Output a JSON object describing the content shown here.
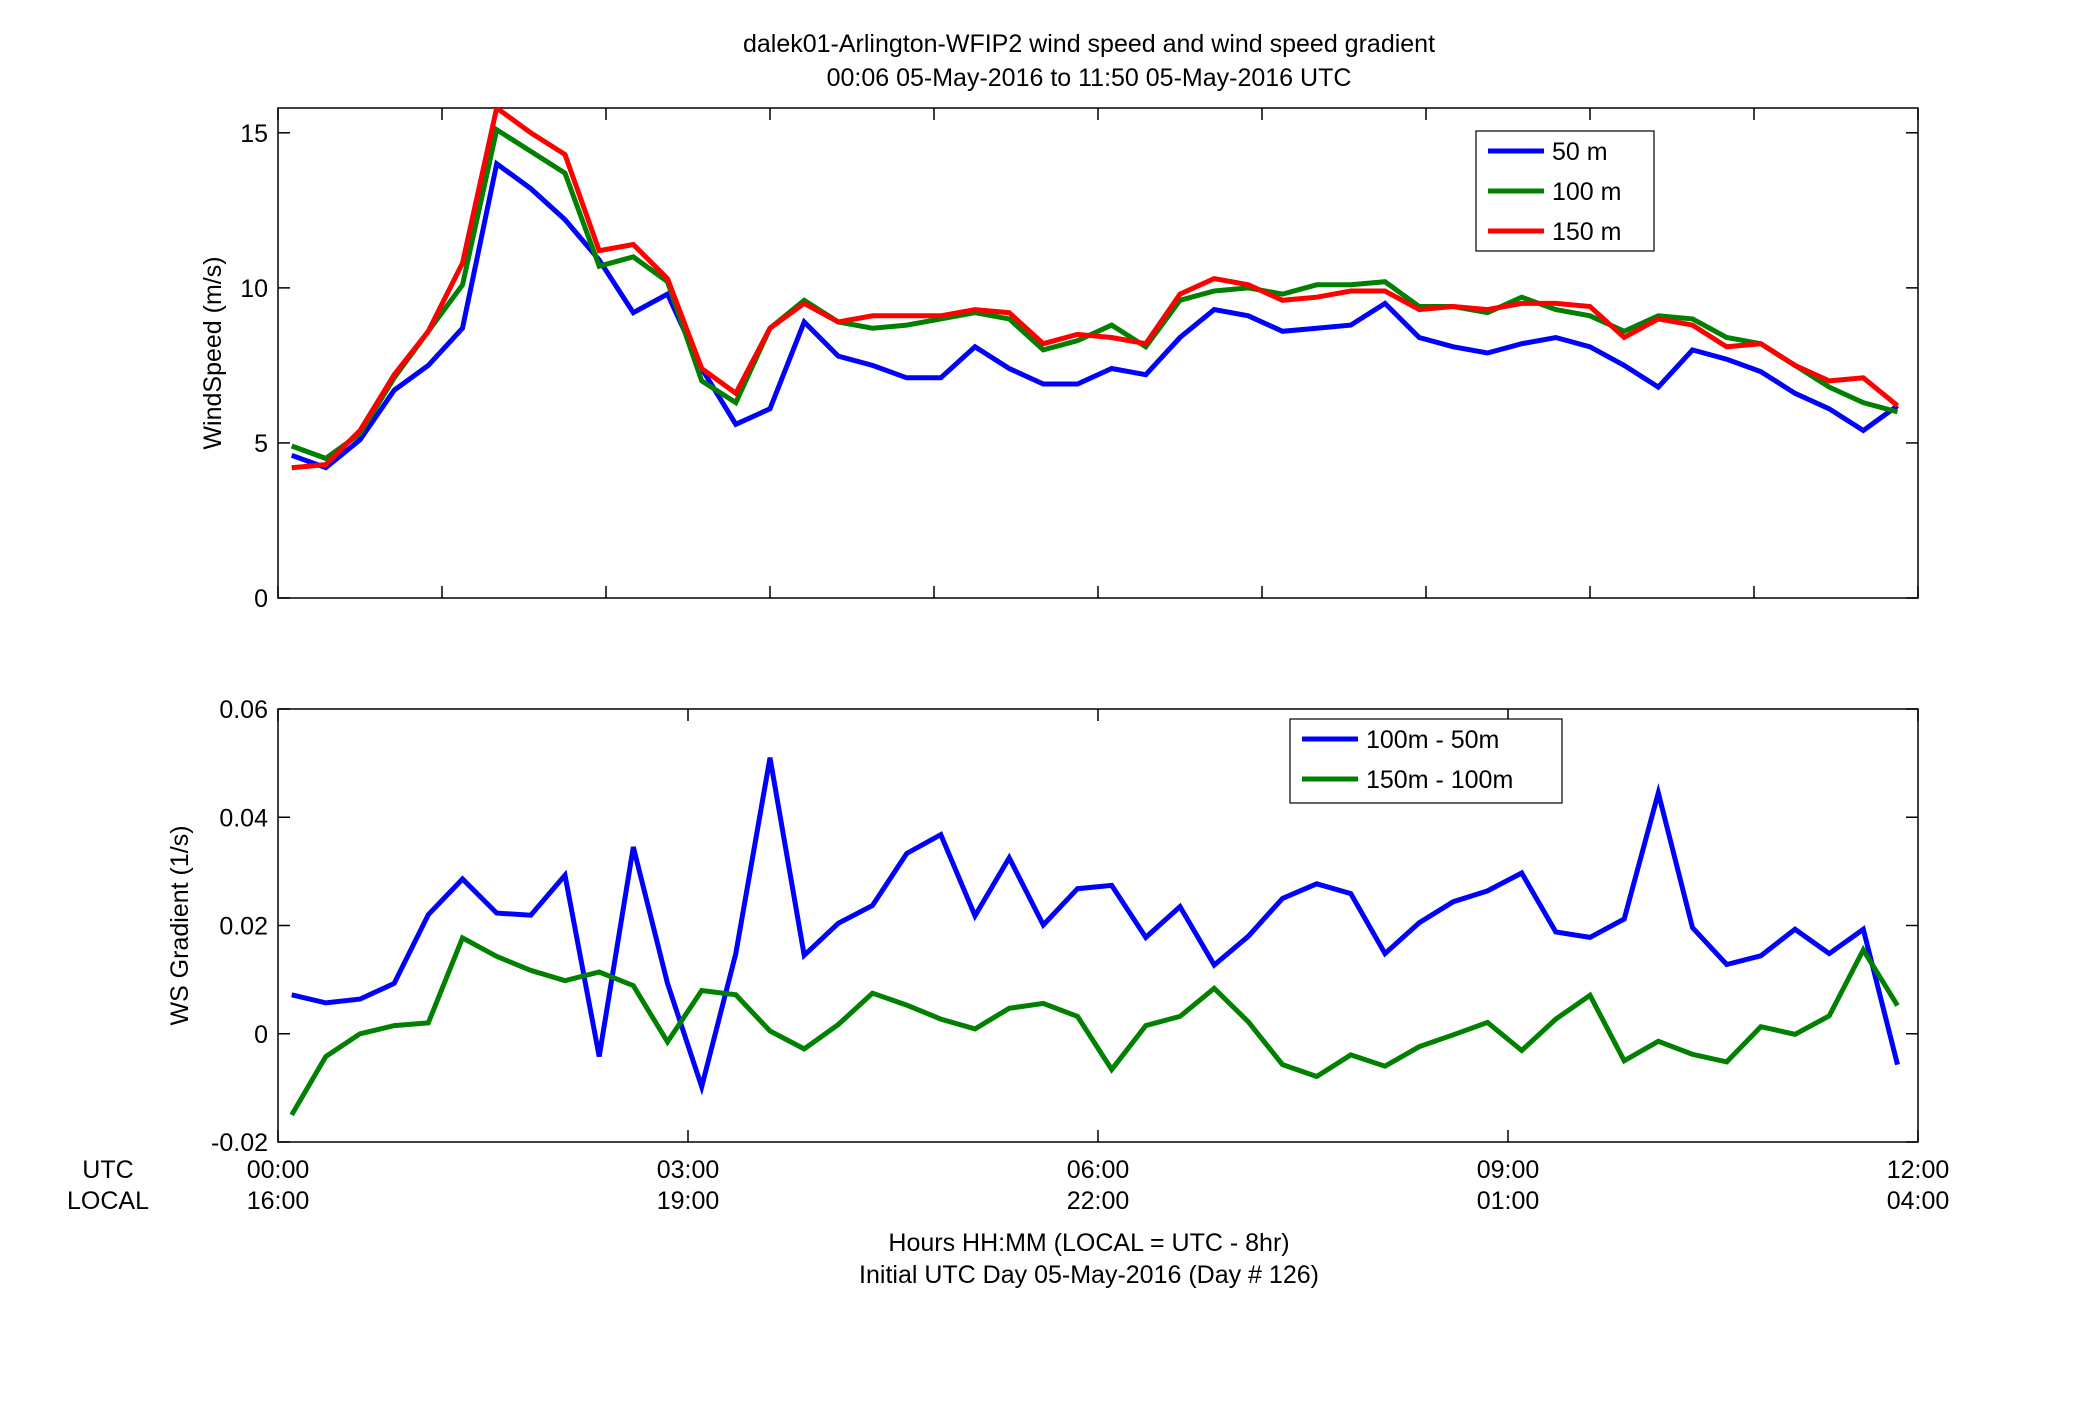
{
  "figure": {
    "title_line1": "dalek01-Arlington-WFIP2  wind speed and wind speed gradient",
    "title_line2": "00:06 05-May-2016 to 11:50 05-May-2016  UTC",
    "xaxis_caption1": "Hours HH:MM  (LOCAL = UTC - 8hr)",
    "xaxis_caption2": "Initial UTC Day 05-May-2016 (Day # 126)",
    "row_label_utc": "UTC",
    "row_label_local": "LOCAL",
    "utc_ticks": [
      "00:00",
      "03:00",
      "06:00",
      "09:00",
      "12:00"
    ],
    "local_ticks": [
      "16:00",
      "19:00",
      "22:00",
      "01:00",
      "04:00"
    ]
  },
  "chart_data": [
    {
      "type": "line",
      "ylabel": "WindSpeed (m/s)",
      "xlim": [
        0,
        12
      ],
      "ylim": [
        0,
        15.8
      ],
      "yticks": [
        0,
        5,
        10,
        15
      ],
      "ytick_labels": [
        "0",
        "5",
        "10",
        "15"
      ],
      "xticks": [
        0,
        1.2,
        2.4,
        3.6,
        4.8,
        6,
        7.2,
        8.4,
        9.6,
        10.8,
        12
      ],
      "legend_position": "top-right",
      "x": [
        0.1,
        0.35,
        0.6,
        0.85,
        1.1,
        1.35,
        1.6,
        1.85,
        2.1,
        2.35,
        2.6,
        2.85,
        3.1,
        3.35,
        3.6,
        3.85,
        4.1,
        4.35,
        4.6,
        4.85,
        5.1,
        5.35,
        5.6,
        5.85,
        6.1,
        6.35,
        6.6,
        6.85,
        7.1,
        7.35,
        7.6,
        7.85,
        8.1,
        8.35,
        8.6,
        8.85,
        9.1,
        9.35,
        9.6,
        9.85,
        10.1,
        10.35,
        10.6,
        10.85,
        11.1,
        11.35,
        11.6,
        11.85
      ],
      "series": [
        {
          "name": "50 m",
          "color": "#0000ff",
          "values": [
            4.6,
            4.2,
            5.1,
            6.7,
            7.5,
            8.7,
            14.0,
            13.2,
            12.2,
            10.9,
            9.2,
            9.8,
            7.4,
            5.6,
            6.1,
            8.9,
            7.8,
            7.5,
            7.1,
            7.1,
            8.1,
            7.4,
            6.9,
            6.9,
            7.4,
            7.2,
            8.4,
            9.3,
            9.1,
            8.6,
            8.7,
            8.8,
            9.5,
            8.4,
            8.1,
            7.9,
            8.2,
            8.4,
            8.1,
            7.5,
            6.8,
            8.0,
            7.7,
            7.3,
            6.6,
            6.1,
            5.4,
            6.2
          ]
        },
        {
          "name": "100 m",
          "color": "#008000",
          "values": [
            4.9,
            4.5,
            5.3,
            7.1,
            8.6,
            10.1,
            15.1,
            14.4,
            13.7,
            10.7,
            11.0,
            10.2,
            7.0,
            6.3,
            8.7,
            9.6,
            8.9,
            8.7,
            8.8,
            9.0,
            9.2,
            9.0,
            8.0,
            8.3,
            8.8,
            8.1,
            9.6,
            9.9,
            10.0,
            9.8,
            10.1,
            10.1,
            10.2,
            9.4,
            9.4,
            9.2,
            9.7,
            9.3,
            9.1,
            8.6,
            9.1,
            9.0,
            8.4,
            8.2,
            7.5,
            6.8,
            6.3,
            6.0
          ]
        },
        {
          "name": "150 m",
          "color": "#ff0000",
          "values": [
            4.2,
            4.3,
            5.4,
            7.2,
            8.6,
            10.8,
            15.8,
            15.0,
            14.3,
            11.2,
            11.4,
            10.3,
            7.4,
            6.6,
            8.7,
            9.5,
            8.9,
            9.1,
            9.1,
            9.1,
            9.3,
            9.2,
            8.2,
            8.5,
            8.4,
            8.2,
            9.8,
            10.3,
            10.1,
            9.6,
            9.7,
            9.9,
            9.9,
            9.3,
            9.4,
            9.3,
            9.5,
            9.5,
            9.4,
            8.4,
            9.0,
            8.8,
            8.1,
            8.2,
            7.5,
            7.0,
            7.1,
            6.2
          ]
        }
      ]
    },
    {
      "type": "line",
      "ylabel": "WS Gradient (1/s)",
      "xlim": [
        0,
        12
      ],
      "ylim": [
        -0.02,
        0.06
      ],
      "yticks": [
        -0.02,
        0,
        0.02,
        0.04,
        0.06
      ],
      "ytick_labels": [
        "-0.02",
        "0",
        "0.02",
        "0.04",
        "0.06"
      ],
      "xticks": [
        0,
        3,
        6,
        9,
        12
      ],
      "legend_position": "top-right",
      "x": [
        0.1,
        0.35,
        0.6,
        0.85,
        1.1,
        1.35,
        1.6,
        1.85,
        2.1,
        2.35,
        2.6,
        2.85,
        3.1,
        3.35,
        3.6,
        3.85,
        4.1,
        4.35,
        4.6,
        4.85,
        5.1,
        5.35,
        5.6,
        5.85,
        6.1,
        6.35,
        6.6,
        6.85,
        7.1,
        7.35,
        7.6,
        7.85,
        8.1,
        8.35,
        8.6,
        8.85,
        9.1,
        9.35,
        9.6,
        9.85,
        10.1,
        10.35,
        10.6,
        10.85,
        11.1,
        11.35,
        11.6,
        11.85
      ],
      "series": [
        {
          "name": "100m - 50m",
          "color": "#0000ff",
          "values": [
            0.0072,
            0.0057,
            0.0064,
            0.0093,
            0.022,
            0.0286,
            0.0223,
            0.0219,
            0.0293,
            -0.0042,
            0.0345,
            0.0093,
            -0.0098,
            0.0148,
            0.051,
            0.0145,
            0.0204,
            0.0237,
            0.0333,
            0.0368,
            0.0218,
            0.0325,
            0.0201,
            0.0268,
            0.0274,
            0.0178,
            0.0235,
            0.0127,
            0.018,
            0.025,
            0.0277,
            0.0259,
            0.0148,
            0.0205,
            0.0244,
            0.0264,
            0.0297,
            0.0188,
            0.0178,
            0.0212,
            0.0445,
            0.0196,
            0.0128,
            0.0144,
            0.0193,
            0.0148,
            0.0193,
            -0.0057
          ]
        },
        {
          "name": "150m - 100m",
          "color": "#008000",
          "values": [
            -0.015,
            -0.0042,
            0.0,
            0.0015,
            0.002,
            0.0177,
            0.0143,
            0.0117,
            0.0098,
            0.0114,
            0.0089,
            -0.0015,
            0.008,
            0.0072,
            0.0005,
            -0.0028,
            0.0017,
            0.0075,
            0.0053,
            0.0027,
            0.0009,
            0.0047,
            0.0056,
            0.0032,
            -0.0066,
            0.0015,
            0.0032,
            0.0084,
            0.0022,
            -0.0057,
            -0.0079,
            -0.0039,
            -0.006,
            -0.0024,
            -0.0002,
            0.0021,
            -0.0031,
            0.0027,
            0.0071,
            -0.005,
            -0.0014,
            -0.0038,
            -0.0052,
            0.0013,
            -0.0001,
            0.0033,
            0.0155,
            0.0052
          ]
        }
      ]
    }
  ]
}
